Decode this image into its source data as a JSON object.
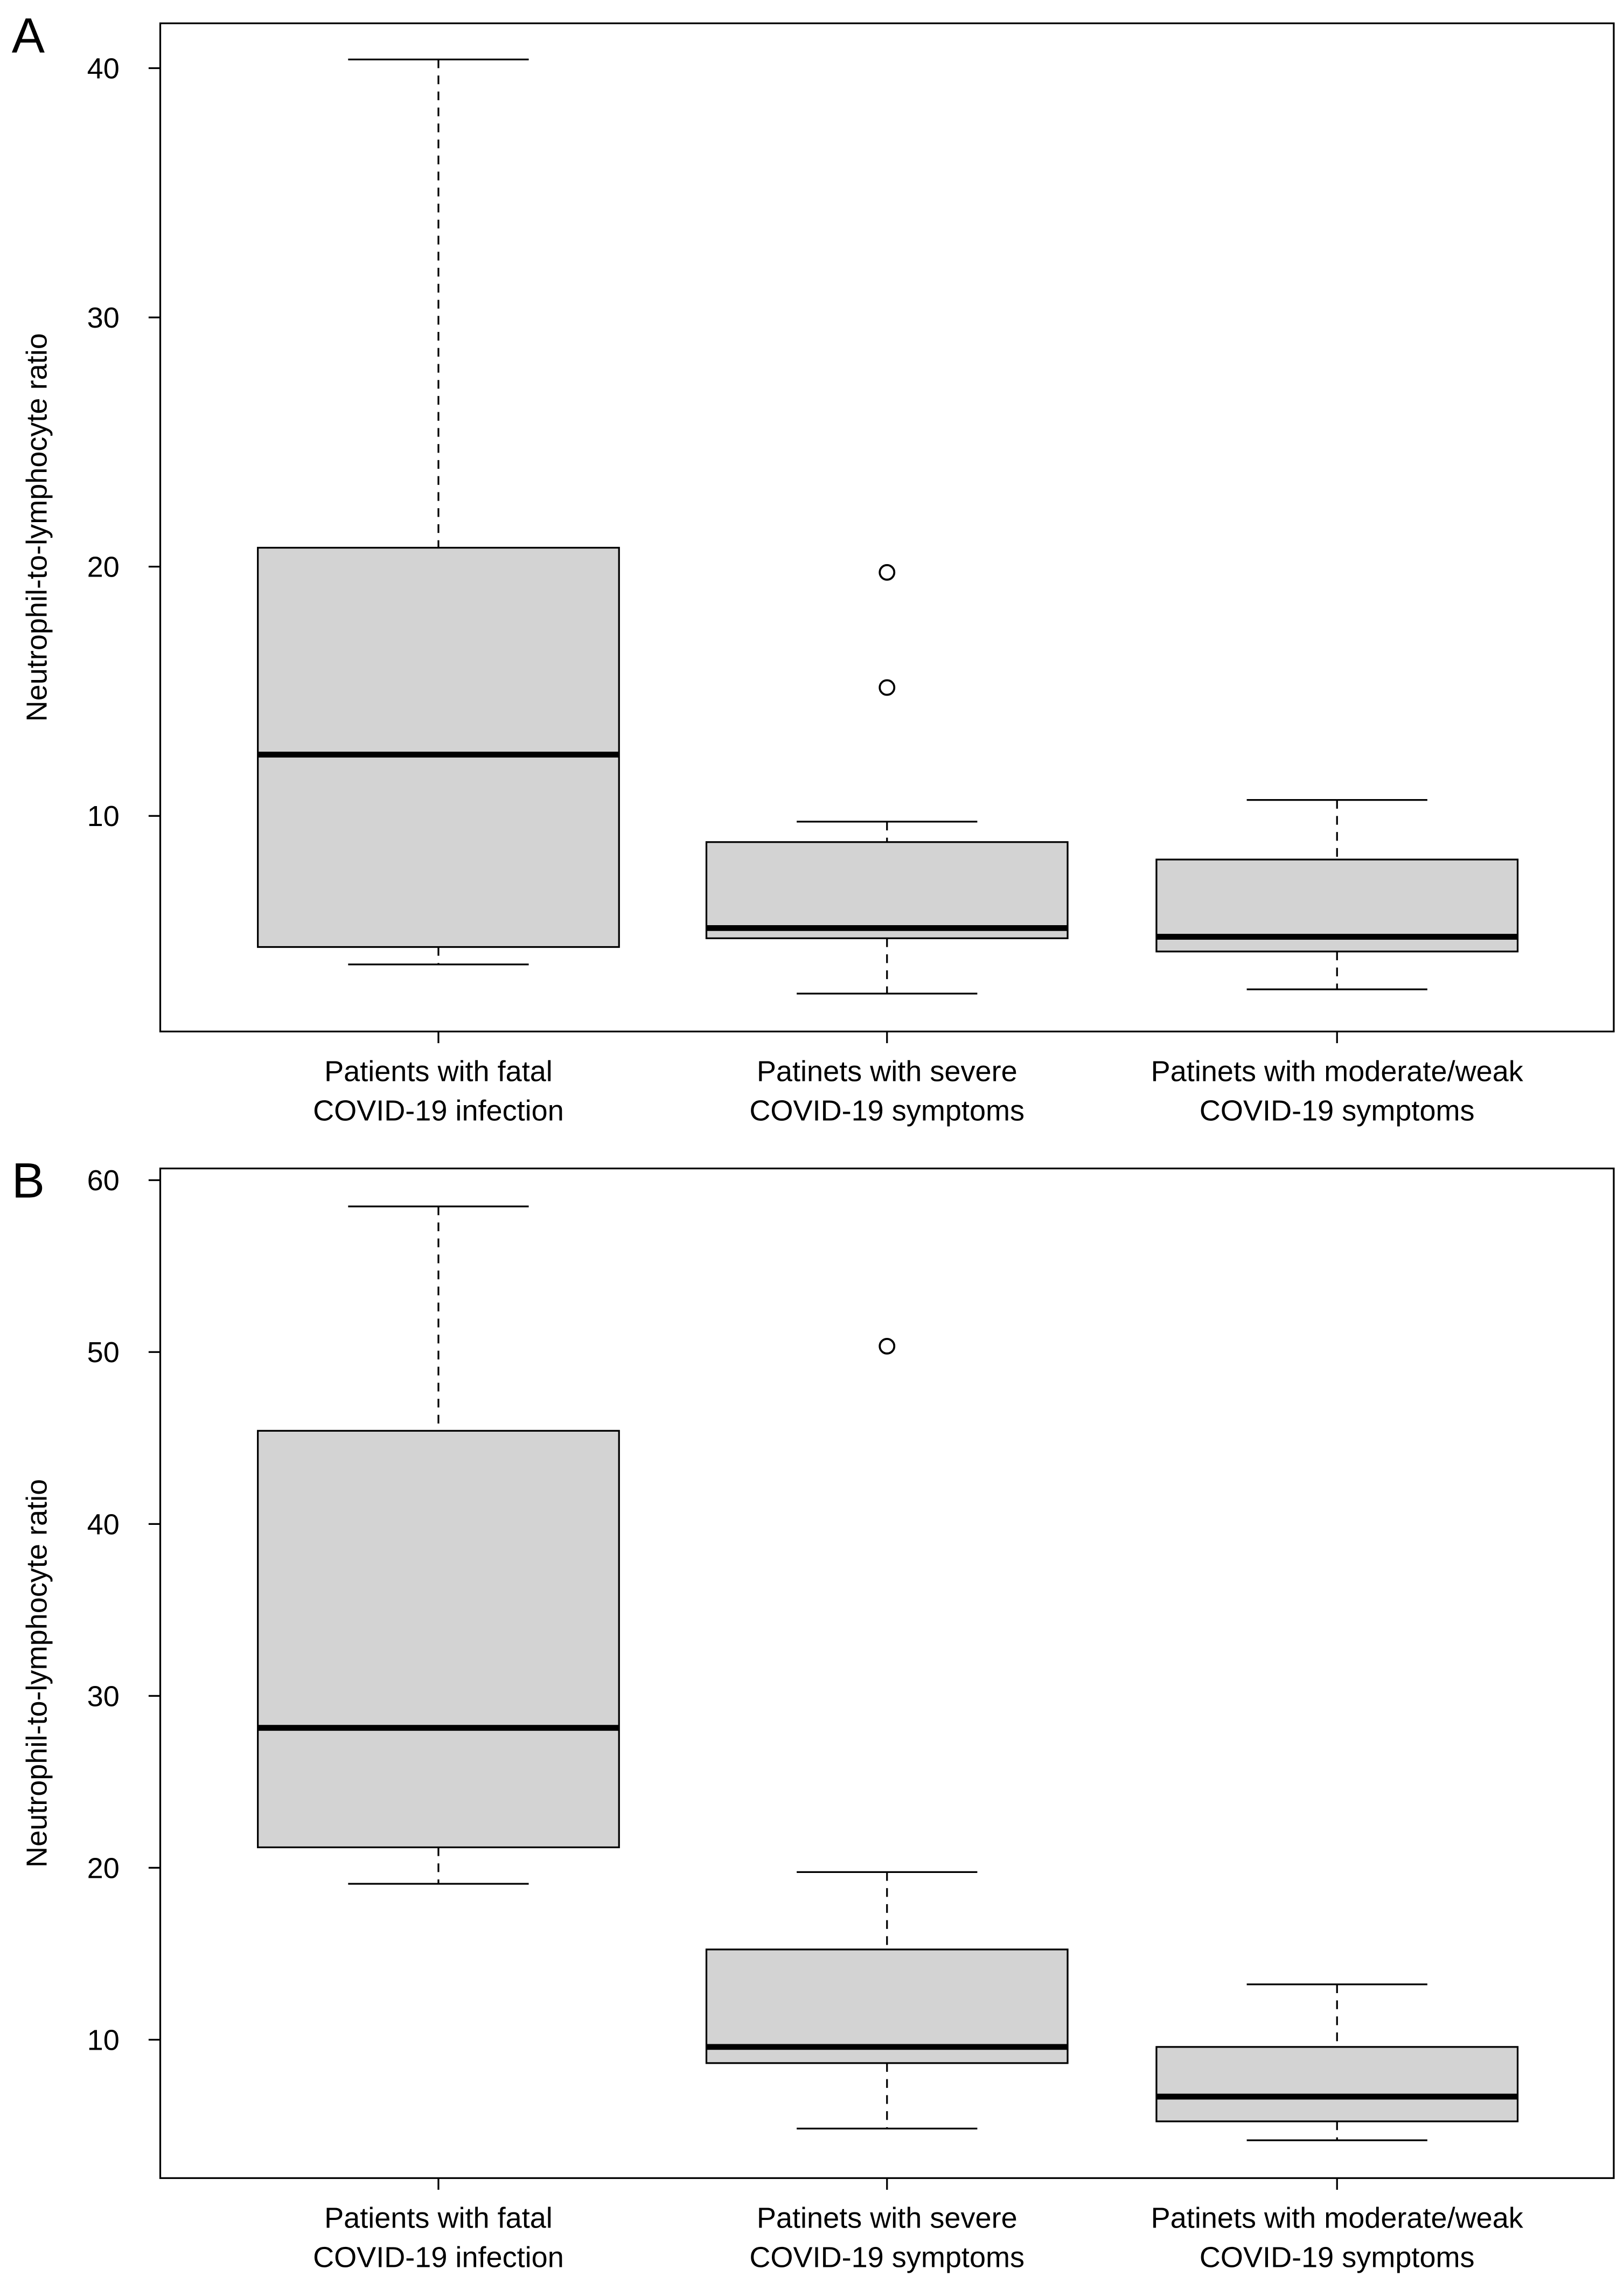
{
  "chart_data": [
    {
      "type": "box",
      "panel_label": "A",
      "y_label": "Neutrophil-to-lymphocyte ratio",
      "categories": [
        "Patients with fatal\nCOVID-19 infection",
        "Patinets with severe\nCOVID-19 symptoms",
        "Patinets with moderate/weak\nCOVID-19 symptoms"
      ],
      "boxes": [
        {
          "whislo": 4.04,
          "q1": 4.74,
          "median": 12.46,
          "q3": 20.76,
          "whishi": 40.35,
          "fliers": []
        },
        {
          "whislo": 2.87,
          "q1": 5.09,
          "median": 5.5,
          "q3": 8.95,
          "whishi": 9.77,
          "fliers": [
            19.77,
            15.15
          ]
        },
        {
          "whislo": 3.04,
          "q1": 4.56,
          "median": 5.15,
          "q3": 8.25,
          "whishi": 10.64,
          "fliers": []
        }
      ],
      "color": "#d3d3d3",
      "ylim": [
        1.35,
        41.8
      ],
      "yticks": [
        10,
        20,
        30,
        40
      ]
    },
    {
      "type": "box",
      "panel_label": "B",
      "y_label": "Neutrophil-to-lymphocyte ratio",
      "categories": [
        "Patients with fatal\nCOVID-19 infection",
        "Patinets with severe\nCOVID-19 symptoms",
        "Patinets with moderate/weak\nCOVID-19 symptoms"
      ],
      "boxes": [
        {
          "whislo": 19.07,
          "q1": 21.19,
          "median": 28.14,
          "q3": 45.42,
          "whishi": 58.47,
          "fliers": []
        },
        {
          "whislo": 4.83,
          "q1": 8.64,
          "median": 9.58,
          "q3": 15.25,
          "whishi": 19.75,
          "fliers": [
            50.34
          ]
        },
        {
          "whislo": 4.15,
          "q1": 5.25,
          "median": 6.69,
          "q3": 9.58,
          "whishi": 13.22,
          "fliers": []
        }
      ],
      "color": "#d3d3d3",
      "ylim": [
        1.95,
        60.68
      ],
      "yticks": [
        10,
        20,
        30,
        40,
        50,
        60
      ]
    }
  ]
}
